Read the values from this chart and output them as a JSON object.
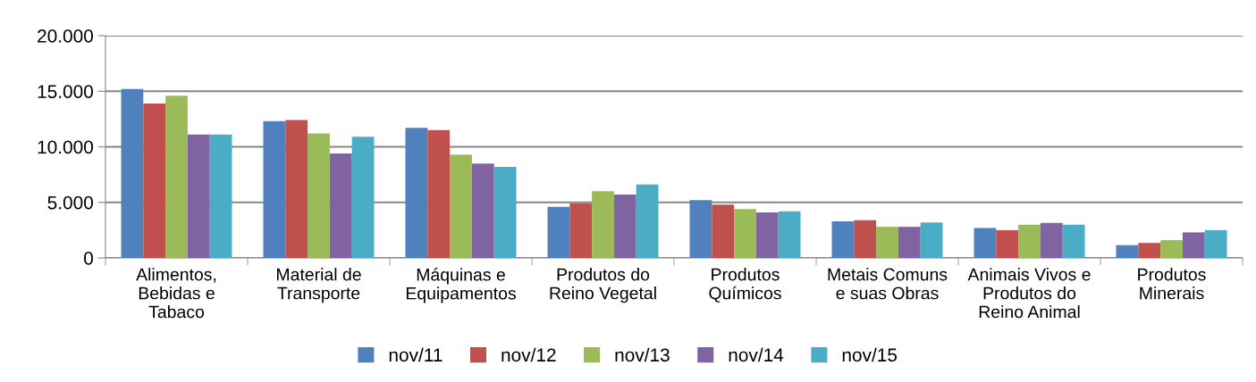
{
  "chart_data": {
    "type": "bar",
    "categories": [
      "Alimentos,\nBebidas e\nTabaco",
      "Material de\nTransporte",
      "Máquinas e\nEquipamentos",
      "Produtos do\nReino Vegetal",
      "Produtos\nQuímicos",
      "Metais Comuns\ne suas Obras",
      "Animais Vivos e\nProdutos do\nReino Animal",
      "Produtos\nMinerais"
    ],
    "series": [
      {
        "name": "nov/11",
        "color": "#4f81bd",
        "values": [
          15200,
          12300,
          11700,
          4600,
          5200,
          3300,
          2700,
          1150
        ]
      },
      {
        "name": "nov/12",
        "color": "#c0504d",
        "values": [
          13900,
          12400,
          11500,
          4900,
          4800,
          3400,
          2500,
          1350
        ]
      },
      {
        "name": "nov/13",
        "color": "#9bbb59",
        "values": [
          14600,
          11200,
          9300,
          6000,
          4400,
          2800,
          3000,
          1600
        ]
      },
      {
        "name": "nov/14",
        "color": "#8064a2",
        "values": [
          11100,
          9400,
          8500,
          5700,
          4100,
          2800,
          3150,
          2300
        ]
      },
      {
        "name": "nov/15",
        "color": "#4bacc6",
        "values": [
          11100,
          10900,
          8200,
          6600,
          4200,
          3200,
          3000,
          2500
        ]
      }
    ],
    "ylim": [
      0,
      20000
    ],
    "yticks": [
      {
        "value": 0,
        "label": "0"
      },
      {
        "value": 5000,
        "label": "5.000"
      },
      {
        "value": 10000,
        "label": "10.000"
      },
      {
        "value": 15000,
        "label": "15.000"
      },
      {
        "value": 20000,
        "label": "20.000"
      }
    ],
    "grid": "y",
    "legend": "bottom"
  }
}
